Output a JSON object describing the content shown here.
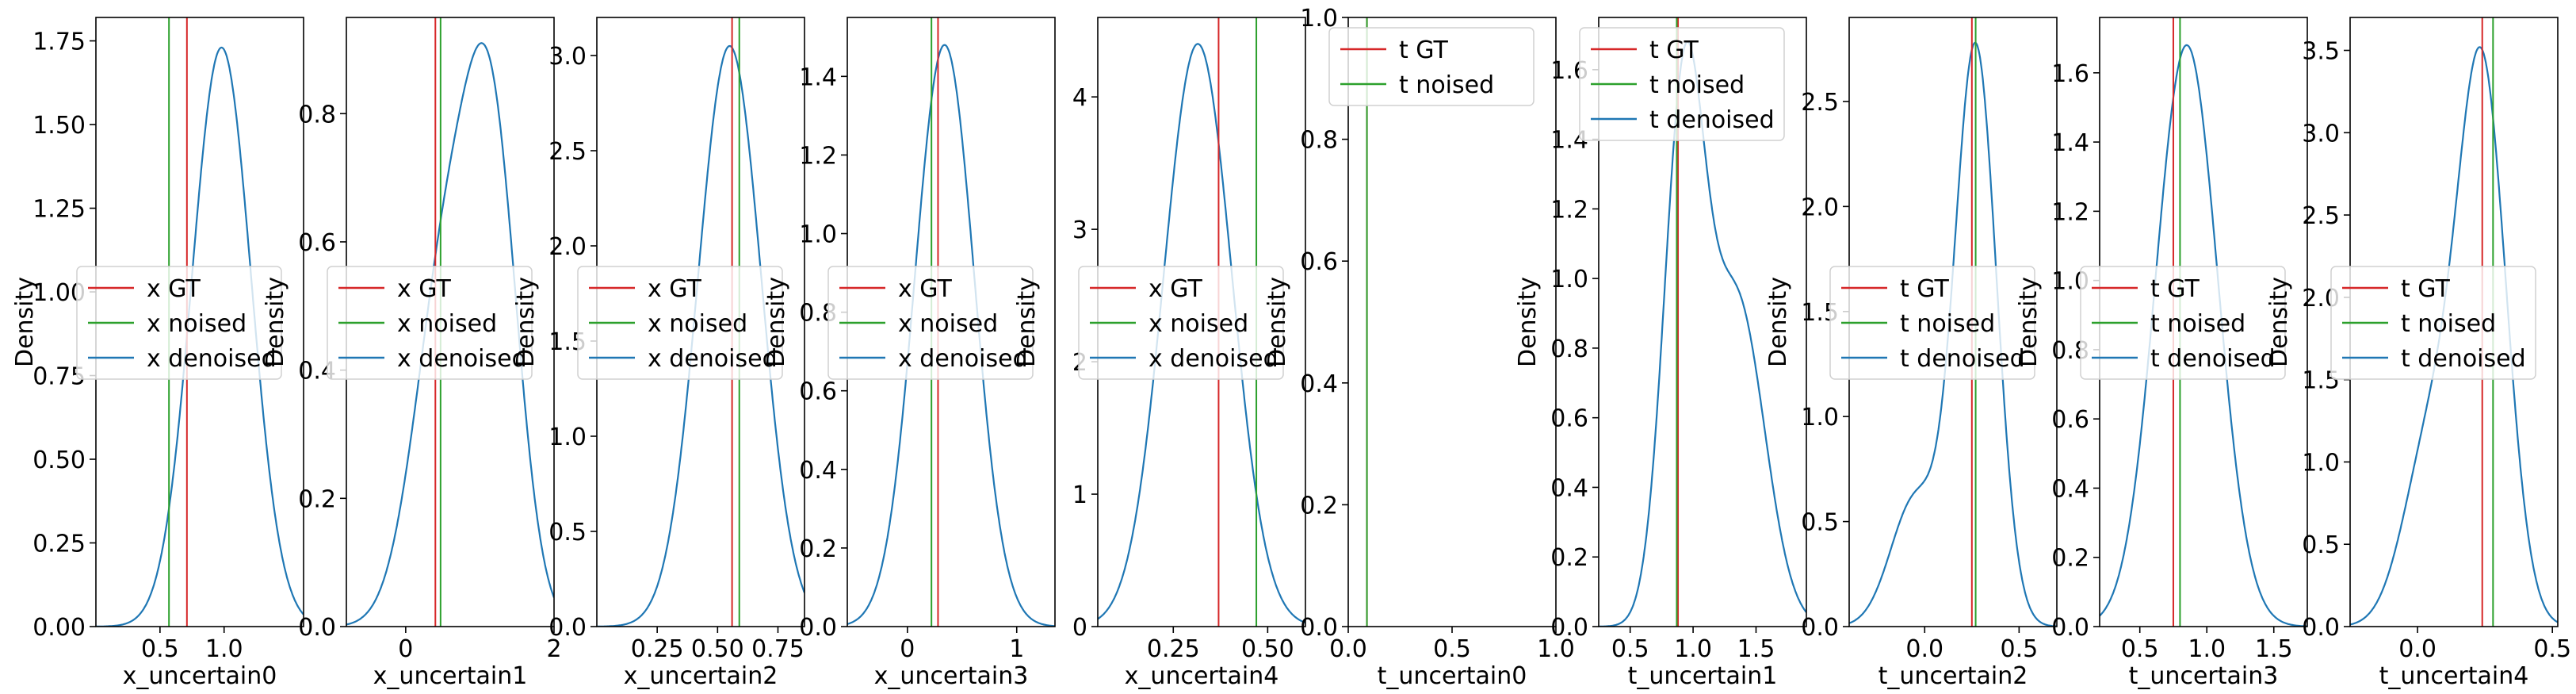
{
  "chart_data": [
    {
      "type": "line",
      "xlabel": "x_uncertain0",
      "ylabel": "Density",
      "xlim": [
        0.0,
        1.62
      ],
      "ylim": [
        0.0,
        1.82
      ],
      "xticks": [
        {
          "v": 0.5,
          "label": "0.5"
        },
        {
          "v": 1.0,
          "label": "1.0"
        }
      ],
      "yticks": [
        {
          "v": 0.0,
          "label": "0.00"
        },
        {
          "v": 0.25,
          "label": "0.25"
        },
        {
          "v": 0.5,
          "label": "0.50"
        },
        {
          "v": 0.75,
          "label": "0.75"
        },
        {
          "v": 1.0,
          "label": "1.00"
        },
        {
          "v": 1.25,
          "label": "1.25"
        },
        {
          "v": 1.5,
          "label": "1.50"
        },
        {
          "v": 1.75,
          "label": "1.75"
        }
      ],
      "vlines": [
        {
          "name": "x GT",
          "x": 0.71,
          "color": "#d62728"
        },
        {
          "name": "x noised",
          "x": 0.57,
          "color": "#2ca02c"
        }
      ],
      "density": {
        "name": "x denoised",
        "color": "#1f77b4",
        "components": [
          {
            "w": 1.0,
            "mu": 0.98,
            "sd": 0.23
          }
        ],
        "scale": 1.73,
        "range": [
          0.0,
          1.62
        ]
      },
      "legend": {
        "placement": "center-left",
        "entries": [
          "x GT",
          "x noised",
          "x denoised"
        ]
      }
    },
    {
      "type": "line",
      "xlabel": "x_uncertain1",
      "ylabel": "Density",
      "xlim": [
        -0.8,
        2.0
      ],
      "ylim": [
        0.0,
        0.95
      ],
      "xticks": [
        {
          "v": 0,
          "label": "0"
        },
        {
          "v": 2,
          "label": "2"
        }
      ],
      "yticks": [
        {
          "v": 0.0,
          "label": "0.0"
        },
        {
          "v": 0.2,
          "label": "0.2"
        },
        {
          "v": 0.4,
          "label": "0.4"
        },
        {
          "v": 0.6,
          "label": "0.6"
        },
        {
          "v": 0.8,
          "label": "0.8"
        }
      ],
      "vlines": [
        {
          "name": "x GT",
          "x": 0.4,
          "color": "#d62728"
        },
        {
          "name": "x noised",
          "x": 0.47,
          "color": "#2ca02c"
        }
      ],
      "density": {
        "name": "x denoised",
        "color": "#1f77b4",
        "components": [
          {
            "w": 0.45,
            "mu": 0.55,
            "sd": 0.42
          },
          {
            "w": 0.55,
            "mu": 1.18,
            "sd": 0.35
          }
        ],
        "scale": 0.91,
        "range": [
          -0.8,
          2.0
        ]
      },
      "legend": {
        "placement": "center-left",
        "entries": [
          "x GT",
          "x noised",
          "x denoised"
        ]
      }
    },
    {
      "type": "line",
      "xlabel": "x_uncertain2",
      "ylabel": "Density",
      "xlim": [
        0.0,
        0.86
      ],
      "ylim": [
        0.0,
        3.2
      ],
      "xticks": [
        {
          "v": 0.25,
          "label": "0.25"
        },
        {
          "v": 0.5,
          "label": "0.50"
        },
        {
          "v": 0.75,
          "label": "0.75"
        }
      ],
      "yticks": [
        {
          "v": 0.0,
          "label": "0.0"
        },
        {
          "v": 0.5,
          "label": "0.5"
        },
        {
          "v": 1.0,
          "label": "1.0"
        },
        {
          "v": 1.5,
          "label": "1.5"
        },
        {
          "v": 2.0,
          "label": "2.0"
        },
        {
          "v": 2.5,
          "label": "2.5"
        },
        {
          "v": 3.0,
          "label": "3.0"
        }
      ],
      "vlines": [
        {
          "name": "x GT",
          "x": 0.56,
          "color": "#d62728"
        },
        {
          "name": "x noised",
          "x": 0.59,
          "color": "#2ca02c"
        }
      ],
      "density": {
        "name": "x denoised",
        "color": "#1f77b4",
        "components": [
          {
            "w": 1.0,
            "mu": 0.55,
            "sd": 0.13
          }
        ],
        "scale": 3.05,
        "range": [
          0.0,
          0.86
        ]
      },
      "legend": {
        "placement": "center-left",
        "entries": [
          "x GT",
          "x noised",
          "x denoised"
        ]
      }
    },
    {
      "type": "line",
      "xlabel": "x_uncertain3",
      "ylabel": "Density",
      "xlim": [
        -0.55,
        1.35
      ],
      "ylim": [
        0.0,
        1.55
      ],
      "xticks": [
        {
          "v": 0,
          "label": "0"
        },
        {
          "v": 1,
          "label": "1"
        }
      ],
      "yticks": [
        {
          "v": 0.0,
          "label": "0.0"
        },
        {
          "v": 0.2,
          "label": "0.2"
        },
        {
          "v": 0.4,
          "label": "0.4"
        },
        {
          "v": 0.6,
          "label": "0.6"
        },
        {
          "v": 0.8,
          "label": "0.8"
        },
        {
          "v": 1.0,
          "label": "1.0"
        },
        {
          "v": 1.2,
          "label": "1.2"
        },
        {
          "v": 1.4,
          "label": "1.4"
        }
      ],
      "vlines": [
        {
          "name": "x GT",
          "x": 0.28,
          "color": "#d62728"
        },
        {
          "name": "x noised",
          "x": 0.22,
          "color": "#2ca02c"
        }
      ],
      "density": {
        "name": "x denoised",
        "color": "#1f77b4",
        "components": [
          {
            "w": 1.0,
            "mu": 0.34,
            "sd": 0.27
          }
        ],
        "scale": 1.48,
        "range": [
          -0.55,
          1.35
        ]
      },
      "legend": {
        "placement": "center-left",
        "entries": [
          "x GT",
          "x noised",
          "x denoised"
        ]
      }
    },
    {
      "type": "line",
      "xlabel": "x_uncertain4",
      "ylabel": "Density",
      "xlim": [
        0.05,
        0.6
      ],
      "ylim": [
        0.0,
        4.6
      ],
      "xticks": [
        {
          "v": 0.25,
          "label": "0.25"
        },
        {
          "v": 0.5,
          "label": "0.50"
        }
      ],
      "yticks": [
        {
          "v": 0,
          "label": "0"
        },
        {
          "v": 1,
          "label": "1"
        },
        {
          "v": 2,
          "label": "2"
        },
        {
          "v": 3,
          "label": "3"
        },
        {
          "v": 4,
          "label": "4"
        }
      ],
      "vlines": [
        {
          "name": "x GT",
          "x": 0.37,
          "color": "#d62728"
        },
        {
          "name": "x noised",
          "x": 0.47,
          "color": "#2ca02c"
        }
      ],
      "density": {
        "name": "x denoised",
        "color": "#1f77b4",
        "components": [
          {
            "w": 1.0,
            "mu": 0.315,
            "sd": 0.09
          }
        ],
        "scale": 4.4,
        "range": [
          0.05,
          0.6
        ]
      },
      "legend": {
        "placement": "center-left",
        "entries": [
          "x GT",
          "x noised",
          "x denoised"
        ]
      }
    },
    {
      "type": "line",
      "xlabel": "t_uncertain0",
      "ylabel": "Density",
      "xlim": [
        0.0,
        1.0
      ],
      "ylim": [
        0.0,
        1.0
      ],
      "xticks": [
        {
          "v": 0.0,
          "label": "0.0"
        },
        {
          "v": 0.5,
          "label": "0.5"
        },
        {
          "v": 1.0,
          "label": "1.0"
        }
      ],
      "yticks": [
        {
          "v": 0.0,
          "label": "0.0"
        },
        {
          "v": 0.2,
          "label": "0.2"
        },
        {
          "v": 0.4,
          "label": "0.4"
        },
        {
          "v": 0.6,
          "label": "0.6"
        },
        {
          "v": 0.8,
          "label": "0.8"
        },
        {
          "v": 1.0,
          "label": "1.0"
        }
      ],
      "vlines": [
        {
          "name": "t GT",
          "x": 0.09,
          "color": "#d62728"
        },
        {
          "name": "t noised",
          "x": 0.09,
          "color": "#2ca02c"
        }
      ],
      "density": null,
      "legend": {
        "placement": "upper-left",
        "entries": [
          "t GT",
          "t noised"
        ]
      }
    },
    {
      "type": "line",
      "xlabel": "t_uncertain1",
      "ylabel": "Density",
      "xlim": [
        0.25,
        1.9
      ],
      "ylim": [
        0.0,
        1.75
      ],
      "xticks": [
        {
          "v": 0.5,
          "label": "0.5"
        },
        {
          "v": 1.0,
          "label": "1.0"
        },
        {
          "v": 1.5,
          "label": "1.5"
        }
      ],
      "yticks": [
        {
          "v": 0.0,
          "label": "0.0"
        },
        {
          "v": 0.2,
          "label": "0.2"
        },
        {
          "v": 0.4,
          "label": "0.4"
        },
        {
          "v": 0.6,
          "label": "0.6"
        },
        {
          "v": 0.8,
          "label": "0.8"
        },
        {
          "v": 1.0,
          "label": "1.0"
        },
        {
          "v": 1.2,
          "label": "1.2"
        },
        {
          "v": 1.4,
          "label": "1.4"
        },
        {
          "v": 1.6,
          "label": "1.6"
        }
      ],
      "vlines": [
        {
          "name": "t GT",
          "x": 0.88,
          "color": "#d62728"
        },
        {
          "name": "t noised",
          "x": 0.87,
          "color": "#2ca02c"
        }
      ],
      "density": {
        "name": "t denoised",
        "color": "#1f77b4",
        "components": [
          {
            "w": 0.62,
            "mu": 0.93,
            "sd": 0.16
          },
          {
            "w": 0.38,
            "mu": 1.35,
            "sd": 0.22
          }
        ],
        "scale": 1.68,
        "range": [
          0.25,
          1.9
        ]
      },
      "legend": {
        "placement": "upper-left",
        "entries": [
          "t GT",
          "t noised",
          "t denoised"
        ]
      }
    },
    {
      "type": "line",
      "xlabel": "t_uncertain2",
      "ylabel": "Density",
      "xlim": [
        -0.4,
        0.7
      ],
      "ylim": [
        0.0,
        2.9
      ],
      "xticks": [
        {
          "v": 0.0,
          "label": "0.0"
        },
        {
          "v": 0.5,
          "label": "0.5"
        }
      ],
      "yticks": [
        {
          "v": 0.0,
          "label": "0.0"
        },
        {
          "v": 0.5,
          "label": "0.5"
        },
        {
          "v": 1.0,
          "label": "1.0"
        },
        {
          "v": 1.5,
          "label": "1.5"
        },
        {
          "v": 2.0,
          "label": "2.0"
        },
        {
          "v": 2.5,
          "label": "2.5"
        }
      ],
      "vlines": [
        {
          "name": "t GT",
          "x": 0.25,
          "color": "#d62728"
        },
        {
          "name": "t noised",
          "x": 0.27,
          "color": "#2ca02c"
        }
      ],
      "density": {
        "name": "t denoised",
        "color": "#1f77b4",
        "components": [
          {
            "w": 0.82,
            "mu": 0.27,
            "sd": 0.11
          },
          {
            "w": 0.18,
            "mu": -0.05,
            "sd": 0.13
          }
        ],
        "scale": 2.78,
        "range": [
          -0.4,
          0.7
        ]
      },
      "legend": {
        "placement": "center-left",
        "entries": [
          "t GT",
          "t noised",
          "t denoised"
        ]
      }
    },
    {
      "type": "line",
      "xlabel": "t_uncertain3",
      "ylabel": "Density",
      "xlim": [
        0.2,
        1.75
      ],
      "ylim": [
        0.0,
        1.76
      ],
      "xticks": [
        {
          "v": 0.5,
          "label": "0.5"
        },
        {
          "v": 1.0,
          "label": "1.0"
        },
        {
          "v": 1.5,
          "label": "1.5"
        }
      ],
      "yticks": [
        {
          "v": 0.0,
          "label": "0.0"
        },
        {
          "v": 0.2,
          "label": "0.2"
        },
        {
          "v": 0.4,
          "label": "0.4"
        },
        {
          "v": 0.6,
          "label": "0.6"
        },
        {
          "v": 0.8,
          "label": "0.8"
        },
        {
          "v": 1.0,
          "label": "1.0"
        },
        {
          "v": 1.2,
          "label": "1.2"
        },
        {
          "v": 1.4,
          "label": "1.4"
        },
        {
          "v": 1.6,
          "label": "1.6"
        }
      ],
      "vlines": [
        {
          "name": "t GT",
          "x": 0.75,
          "color": "#d62728"
        },
        {
          "name": "t noised",
          "x": 0.8,
          "color": "#2ca02c"
        }
      ],
      "density": {
        "name": "t denoised",
        "color": "#1f77b4",
        "components": [
          {
            "w": 1.0,
            "mu": 0.85,
            "sd": 0.23
          }
        ],
        "scale": 1.68,
        "range": [
          0.2,
          1.75
        ]
      },
      "legend": {
        "placement": "center-left",
        "entries": [
          "t GT",
          "t noised",
          "t denoised"
        ]
      }
    },
    {
      "type": "line",
      "xlabel": "t_uncertain4",
      "ylabel": "Density",
      "xlim": [
        -0.25,
        0.52
      ],
      "ylim": [
        0.0,
        3.7
      ],
      "xticks": [
        {
          "v": 0.0,
          "label": "0.0"
        },
        {
          "v": 0.5,
          "label": "0.5"
        }
      ],
      "yticks": [
        {
          "v": 0.0,
          "label": "0.0"
        },
        {
          "v": 0.5,
          "label": "0.5"
        },
        {
          "v": 1.0,
          "label": "1.0"
        },
        {
          "v": 1.5,
          "label": "1.5"
        },
        {
          "v": 2.0,
          "label": "2.0"
        },
        {
          "v": 2.5,
          "label": "2.5"
        },
        {
          "v": 3.0,
          "label": "3.0"
        },
        {
          "v": 3.5,
          "label": "3.5"
        }
      ],
      "vlines": [
        {
          "name": "t GT",
          "x": 0.24,
          "color": "#d62728"
        },
        {
          "name": "t noised",
          "x": 0.28,
          "color": "#2ca02c"
        }
      ],
      "density": {
        "name": "t denoised",
        "color": "#1f77b4",
        "components": [
          {
            "w": 0.75,
            "mu": 0.24,
            "sd": 0.09
          },
          {
            "w": 0.25,
            "mu": 0.05,
            "sd": 0.1
          }
        ],
        "scale": 3.52,
        "range": [
          -0.25,
          0.52
        ]
      },
      "legend": {
        "placement": "center-left",
        "entries": [
          "t GT",
          "t noised",
          "t denoised"
        ]
      }
    }
  ]
}
